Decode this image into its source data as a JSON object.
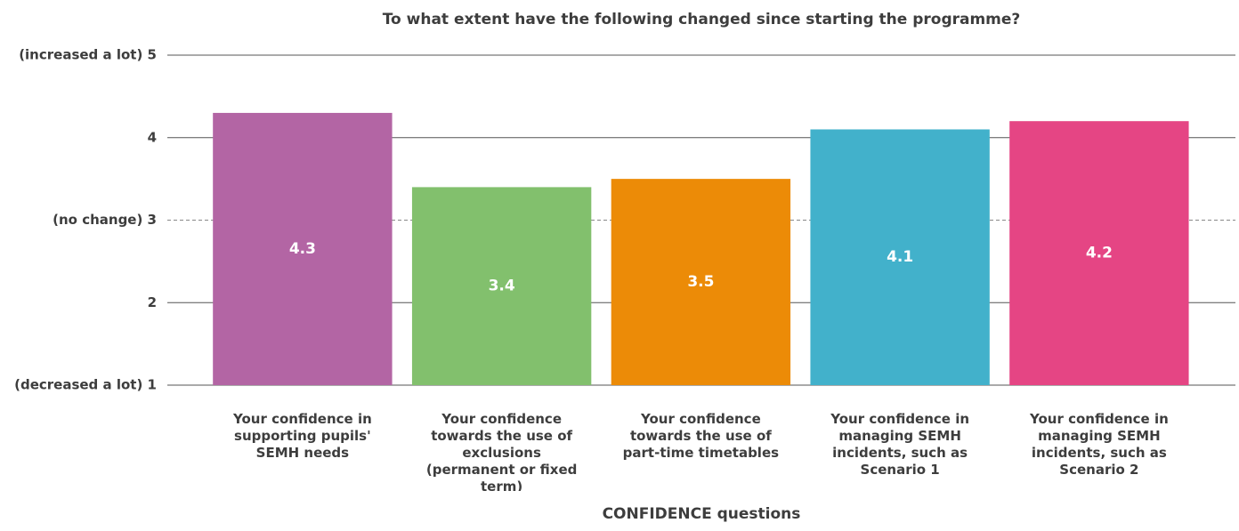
{
  "chart_data": {
    "type": "bar",
    "title": "To what extent have the following changed since starting the programme?",
    "x_label": "CONFIDENCE questions",
    "categories": [
      "Your confidence in supporting pupils' SEMH needs",
      "Your confidence towards the use of exclusions (permanent or fixed term)",
      "Your confidence towards the use of part-time timetables",
      "Your confidence in managing SEMH incidents, such as Scenario 1",
      "Your confidence in managing SEMH incidents, such as Scenario 2"
    ],
    "values": [
      4.3,
      3.4,
      3.5,
      4.1,
      4.2
    ],
    "colors": [
      "#b365a4",
      "#82c06d",
      "#ec8b07",
      "#42b1cb",
      "#e54584"
    ],
    "ylim": [
      1,
      5
    ],
    "yticks": [
      {
        "value": 1,
        "label": "(decreased a lot) 1"
      },
      2,
      {
        "value": 3,
        "label": "(no change) 3"
      },
      4,
      {
        "value": 5,
        "label": "(increased a lot) 5"
      }
    ],
    "grid": true,
    "grid_dashed_at": 3
  }
}
